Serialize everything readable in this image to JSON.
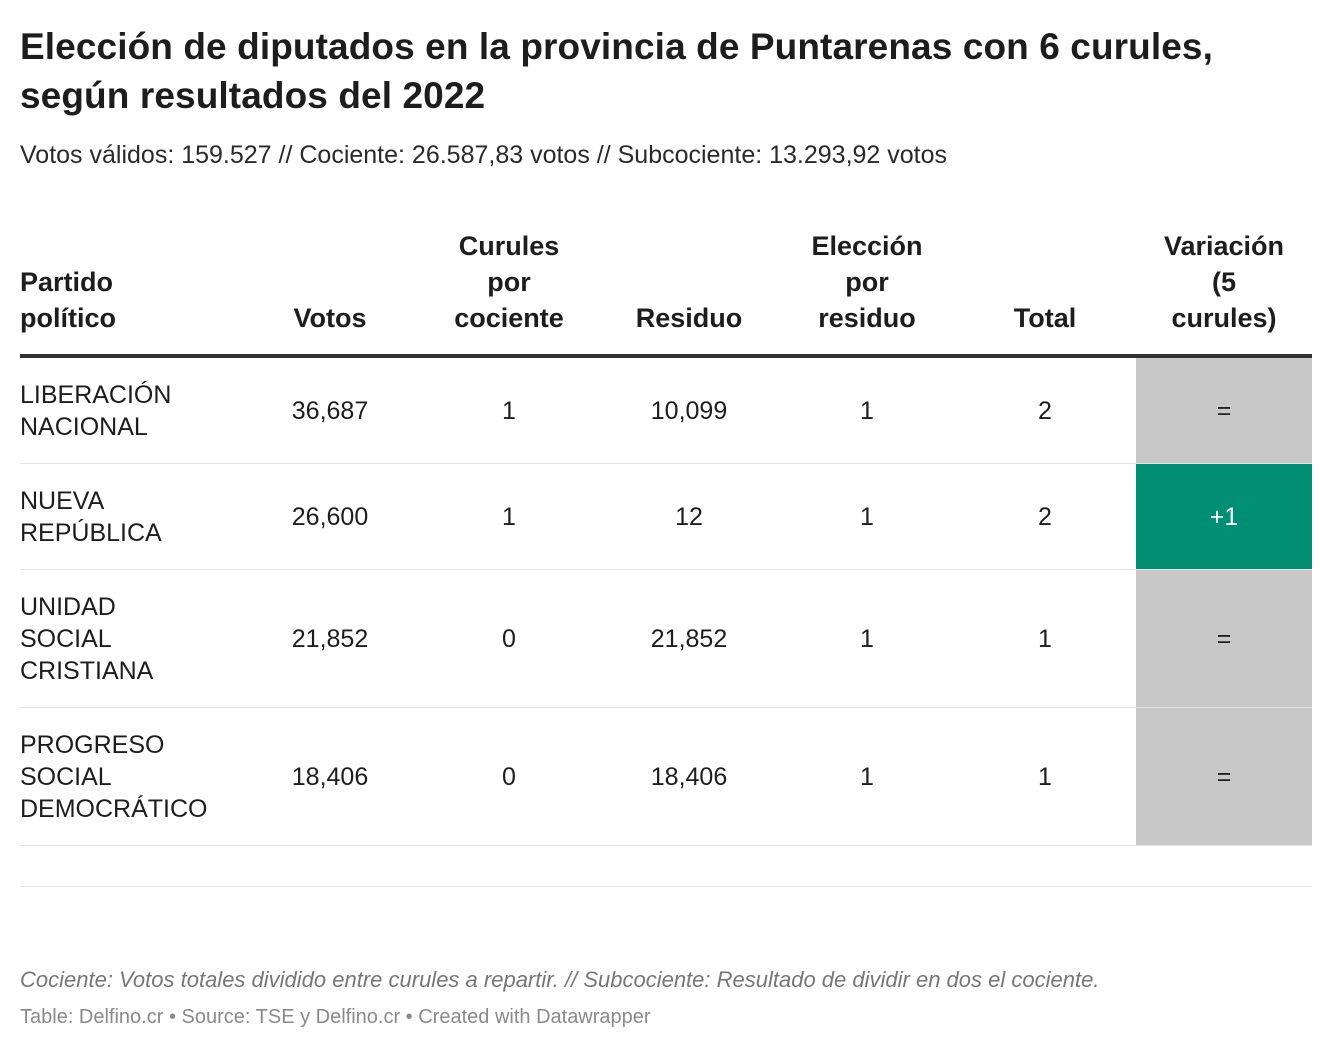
{
  "title": "Elección de diputados en la provincia de Puntarenas con 6 curules, según resultados del 2022",
  "subtitle": "Votos válidos: 159.527 // Cociente: 26.587,83 votos // Subcociente: 13.293,92 votos",
  "chart_data": {
    "type": "table",
    "columns": [
      "Partido político",
      "Votos",
      "Curules por cociente",
      "Residuo",
      "Elección por residuo",
      "Total",
      "Variación (5 curules)"
    ],
    "rows": [
      {
        "partido": "LIBERACIÓN NACIONAL",
        "votos": "36,687",
        "cociente": "1",
        "residuo": "10,099",
        "eleccion": "1",
        "total": "2",
        "variacion": "="
      },
      {
        "partido": "NUEVA REPÚBLICA",
        "votos": "26,600",
        "cociente": "1",
        "residuo": "12",
        "eleccion": "1",
        "total": "2",
        "variacion": "+1"
      },
      {
        "partido": "UNIDAD SOCIAL CRISTIANA",
        "votos": "21,852",
        "cociente": "0",
        "residuo": "21,852",
        "eleccion": "1",
        "total": "1",
        "variacion": "="
      },
      {
        "partido": "PROGRESO SOCIAL DEMOCRÁTICO",
        "votos": "18,406",
        "cociente": "0",
        "residuo": "18,406",
        "eleccion": "1",
        "total": "1",
        "variacion": "="
      }
    ]
  },
  "colors": {
    "unchanged": "#c8c8c8",
    "gain": "#008f72"
  },
  "notes": "Cociente: Votos totales dividido entre curules a repartir. // Subcociente: Resultado de dividir en dos el cociente.",
  "footer": "Table: Delfino.cr • Source: TSE y Delfino.cr • Created with Datawrapper"
}
